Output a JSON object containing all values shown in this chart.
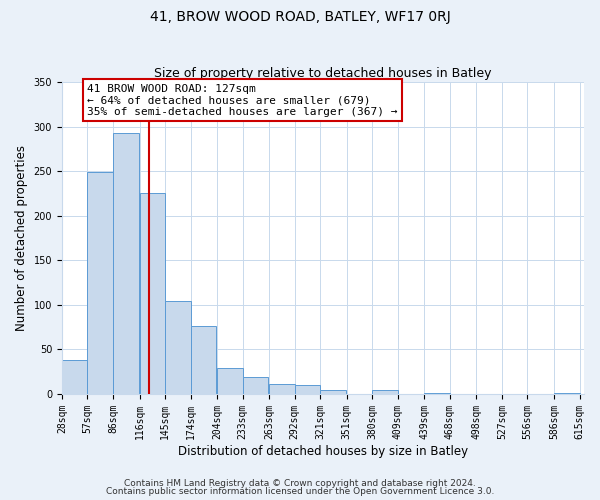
{
  "title": "41, BROW WOOD ROAD, BATLEY, WF17 0RJ",
  "subtitle": "Size of property relative to detached houses in Batley",
  "xlabel": "Distribution of detached houses by size in Batley",
  "ylabel": "Number of detached properties",
  "bar_left_edges": [
    28,
    57,
    86,
    116,
    145,
    174,
    204,
    233,
    263,
    292,
    321,
    351,
    380,
    409,
    439,
    468,
    498,
    527,
    556,
    586
  ],
  "bar_heights": [
    38,
    249,
    293,
    225,
    104,
    76,
    29,
    19,
    11,
    10,
    5,
    0,
    4,
    0,
    1,
    0,
    0,
    0,
    0,
    1
  ],
  "bin_width": 29,
  "tick_labels": [
    "28sqm",
    "57sqm",
    "86sqm",
    "116sqm",
    "145sqm",
    "174sqm",
    "204sqm",
    "233sqm",
    "263sqm",
    "292sqm",
    "321sqm",
    "351sqm",
    "380sqm",
    "409sqm",
    "439sqm",
    "468sqm",
    "498sqm",
    "527sqm",
    "556sqm",
    "586sqm",
    "615sqm"
  ],
  "bar_color": "#c8d9ec",
  "bar_edge_color": "#5b9bd5",
  "vline_x": 127,
  "vline_color": "#cc0000",
  "annotation_line1": "41 BROW WOOD ROAD: 127sqm",
  "annotation_line2": "← 64% of detached houses are smaller (679)",
  "annotation_line3": "35% of semi-detached houses are larger (367) →",
  "annotation_box_color": "#ffffff",
  "annotation_box_edge": "#cc0000",
  "ylim": [
    0,
    350
  ],
  "yticks": [
    0,
    50,
    100,
    150,
    200,
    250,
    300,
    350
  ],
  "footer_line1": "Contains HM Land Registry data © Crown copyright and database right 2024.",
  "footer_line2": "Contains public sector information licensed under the Open Government Licence 3.0.",
  "background_color": "#eaf1f9",
  "plot_background": "#ffffff",
  "grid_color": "#c8d9ec",
  "title_fontsize": 10,
  "subtitle_fontsize": 9,
  "axis_label_fontsize": 8.5,
  "tick_fontsize": 7,
  "annotation_fontsize": 8,
  "footer_fontsize": 6.5
}
